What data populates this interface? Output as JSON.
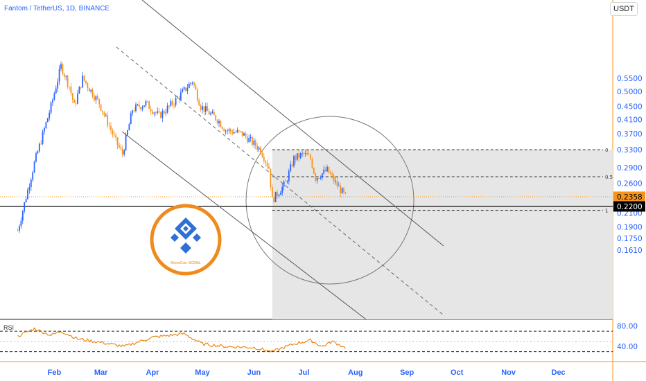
{
  "header": {
    "symbol_line": "Fantom / TetherUS, 1D, BINANCE",
    "currency_button": "USDT"
  },
  "indicator": {
    "label": "RSI"
  },
  "logo": {
    "text": "MinnoCoin SIGNAL"
  },
  "colors": {
    "up": "#2962ff",
    "down": "#f7931a",
    "axis_line": "#f7931a",
    "price_badge": "#f7931a",
    "level_badge": "#000000",
    "rsi_line": "#e8891a"
  },
  "chart_data": [
    {
      "type": "candlestick",
      "title": "Fantom / TetherUS, 1D, BINANCE",
      "x_ticks": [
        "Feb",
        "Mar",
        "Apr",
        "May",
        "Jun",
        "Jul",
        "Aug",
        "Sep",
        "Oct",
        "Nov",
        "Dec"
      ],
      "y_scale": "log",
      "y_ticks": [
        "0.5500",
        "0.5000",
        "0.4500",
        "0.4100",
        "0.3700",
        "0.3300",
        "0.2900",
        "0.2600",
        "0.2358",
        "0.2100",
        "0.1900",
        "0.1750",
        "0.1610"
      ],
      "current_price": "0.2358",
      "horizontal_level": "0.2200",
      "fib_levels": [
        {
          "label": "0",
          "price": 0.33
        },
        {
          "label": "0.5",
          "price": 0.272
        },
        {
          "label": "1",
          "price": 0.214
        }
      ],
      "price_anchors": [
        {
          "date": "2022-01-10",
          "close": 0.185
        },
        {
          "date": "2022-01-20",
          "close": 0.3
        },
        {
          "date": "2022-01-30",
          "close": 0.45
        },
        {
          "date": "2022-02-05",
          "close": 0.6
        },
        {
          "date": "2022-02-10",
          "close": 0.52
        },
        {
          "date": "2022-02-13",
          "close": 0.45
        },
        {
          "date": "2022-02-18",
          "close": 0.55
        },
        {
          "date": "2022-02-28",
          "close": 0.46
        },
        {
          "date": "2022-03-10",
          "close": 0.35
        },
        {
          "date": "2022-03-14",
          "close": 0.32
        },
        {
          "date": "2022-03-20",
          "close": 0.44
        },
        {
          "date": "2022-03-28",
          "close": 0.46
        },
        {
          "date": "2022-04-05",
          "close": 0.42
        },
        {
          "date": "2022-04-15",
          "close": 0.47
        },
        {
          "date": "2022-04-25",
          "close": 0.54
        },
        {
          "date": "2022-04-30",
          "close": 0.45
        },
        {
          "date": "2022-05-10",
          "close": 0.41
        },
        {
          "date": "2022-05-15",
          "close": 0.38
        },
        {
          "date": "2022-05-25",
          "close": 0.37
        },
        {
          "date": "2022-06-05",
          "close": 0.33
        },
        {
          "date": "2022-06-10",
          "close": 0.29
        },
        {
          "date": "2022-06-12",
          "close": 0.23
        },
        {
          "date": "2022-06-20",
          "close": 0.26
        },
        {
          "date": "2022-06-25",
          "close": 0.31
        },
        {
          "date": "2022-07-01",
          "close": 0.32
        },
        {
          "date": "2022-07-05",
          "close": 0.31
        },
        {
          "date": "2022-07-08",
          "close": 0.27
        },
        {
          "date": "2022-07-15",
          "close": 0.285
        },
        {
          "date": "2022-07-20",
          "close": 0.26
        },
        {
          "date": "2022-07-26",
          "close": 0.2358
        }
      ],
      "rsi": {
        "y_ticks": [
          "80.00",
          "40.00"
        ],
        "levels": [
          70,
          50,
          30
        ],
        "values": [
          {
            "date": "2022-01-10",
            "value": 60
          },
          {
            "date": "2022-01-20",
            "value": 75
          },
          {
            "date": "2022-01-30",
            "value": 62
          },
          {
            "date": "2022-02-05",
            "value": 70
          },
          {
            "date": "2022-02-15",
            "value": 55
          },
          {
            "date": "2022-03-01",
            "value": 48
          },
          {
            "date": "2022-03-15",
            "value": 40
          },
          {
            "date": "2022-04-01",
            "value": 58
          },
          {
            "date": "2022-04-20",
            "value": 65
          },
          {
            "date": "2022-05-01",
            "value": 45
          },
          {
            "date": "2022-05-15",
            "value": 40
          },
          {
            "date": "2022-06-01",
            "value": 38
          },
          {
            "date": "2022-06-12",
            "value": 30
          },
          {
            "date": "2022-06-25",
            "value": 45
          },
          {
            "date": "2022-07-05",
            "value": 52
          },
          {
            "date": "2022-07-12",
            "value": 40
          },
          {
            "date": "2022-07-18",
            "value": 50
          },
          {
            "date": "2022-07-26",
            "value": 38
          }
        ]
      }
    }
  ]
}
